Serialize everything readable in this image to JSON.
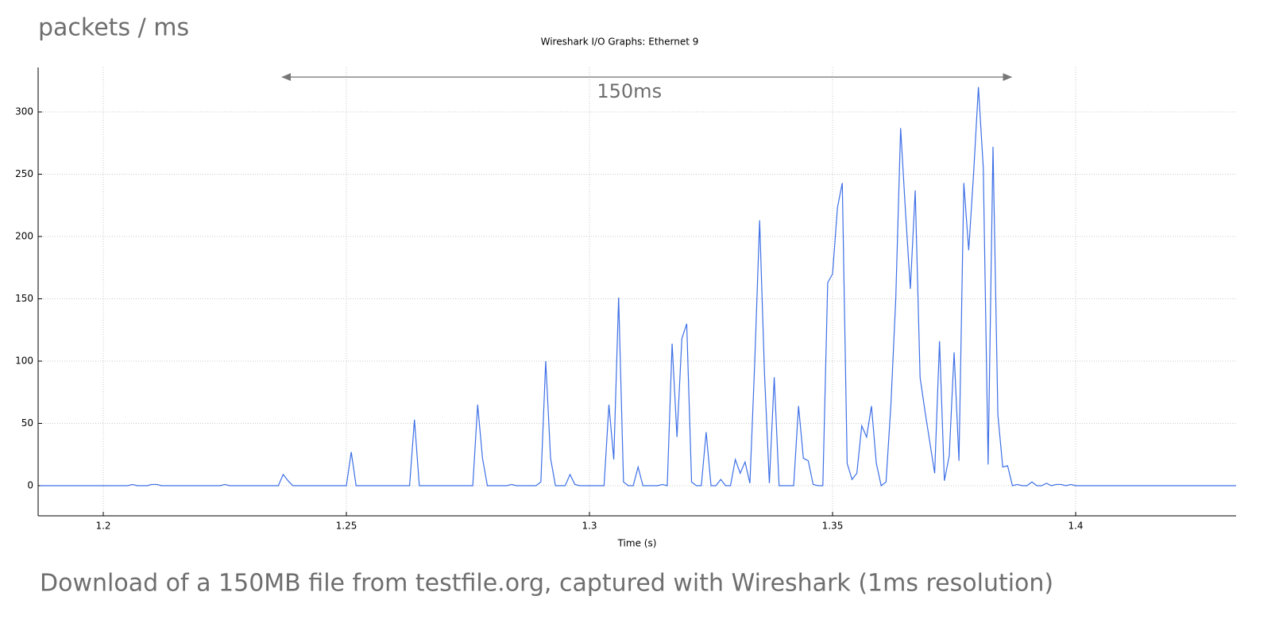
{
  "chart_data": {
    "type": "line",
    "page_title": "packets / ms",
    "title": "Wireshark I/O Graphs: Ethernet 9",
    "caption": "Download of a 150MB file from testfile.org, captured with Wireshark (1ms resolution)",
    "xlabel": "Time (s)",
    "xlim": [
      1.1866,
      1.433
    ],
    "ylim": [
      -24.2,
      335.7
    ],
    "xticks": [
      1.2,
      1.25,
      1.3,
      1.35,
      1.4
    ],
    "yticks": [
      0,
      50,
      100,
      150,
      200,
      250,
      300
    ],
    "grid": true,
    "annotation": {
      "text": "150ms",
      "x": [
        1.2368,
        1.3868
      ],
      "y": 328
    },
    "x": [
      1.187,
      1.205,
      1.206,
      1.207,
      1.209,
      1.21,
      1.211,
      1.212,
      1.224,
      1.225,
      1.226,
      1.236,
      1.237,
      1.238,
      1.239,
      1.25,
      1.251,
      1.252,
      1.263,
      1.264,
      1.265,
      1.276,
      1.277,
      1.278,
      1.279,
      1.283,
      1.284,
      1.285,
      1.289,
      1.29,
      1.291,
      1.292,
      1.293,
      1.295,
      1.296,
      1.297,
      1.298,
      1.303,
      1.304,
      1.305,
      1.306,
      1.307,
      1.308,
      1.309,
      1.31,
      1.311,
      1.314,
      1.315,
      1.316,
      1.317,
      1.318,
      1.319,
      1.32,
      1.321,
      1.322,
      1.323,
      1.324,
      1.325,
      1.326,
      1.327,
      1.328,
      1.329,
      1.33,
      1.331,
      1.332,
      1.333,
      1.334,
      1.335,
      1.336,
      1.337,
      1.338,
      1.339,
      1.342,
      1.343,
      1.344,
      1.345,
      1.346,
      1.347,
      1.348,
      1.349,
      1.35,
      1.351,
      1.352,
      1.353,
      1.354,
      1.355,
      1.356,
      1.357,
      1.358,
      1.359,
      1.36,
      1.361,
      1.362,
      1.363,
      1.364,
      1.365,
      1.366,
      1.367,
      1.368,
      1.369,
      1.37,
      1.371,
      1.372,
      1.373,
      1.374,
      1.375,
      1.376,
      1.377,
      1.378,
      1.379,
      1.38,
      1.381,
      1.382,
      1.383,
      1.384,
      1.385,
      1.386,
      1.387,
      1.388,
      1.389,
      1.39,
      1.391,
      1.392,
      1.393,
      1.394,
      1.395,
      1.396,
      1.397,
      1.398,
      1.399,
      1.4,
      1.433
    ],
    "series": [
      {
        "name": "packets",
        "color": "#3d6fe6",
        "values": [
          0,
          0,
          1,
          0,
          0,
          1,
          1,
          0,
          0,
          1,
          0,
          0,
          9,
          4,
          0,
          0,
          27,
          0,
          0,
          53,
          0,
          0,
          65,
          22,
          0,
          0,
          1,
          0,
          0,
          3,
          100,
          22,
          0,
          0,
          9,
          1,
          0,
          0,
          65,
          21,
          151,
          3,
          0,
          0,
          15,
          0,
          0,
          1,
          0,
          114,
          39,
          118,
          130,
          3,
          0,
          0,
          43,
          0,
          0,
          5,
          0,
          0,
          21,
          10,
          19,
          2,
          100,
          213,
          90,
          2,
          87,
          0,
          0,
          64,
          22,
          20,
          1,
          0,
          0,
          163,
          170,
          223,
          243,
          18,
          5,
          10,
          48,
          39,
          64,
          18,
          0,
          3,
          65,
          150,
          287,
          220,
          158,
          237,
          87,
          60,
          35,
          10,
          116,
          4,
          24,
          107,
          20,
          243,
          189,
          250,
          320,
          255,
          17,
          272,
          57,
          15,
          16,
          0,
          1,
          0,
          0,
          3,
          0,
          0,
          2,
          0,
          1,
          1,
          0,
          1,
          0,
          0
        ]
      }
    ]
  }
}
